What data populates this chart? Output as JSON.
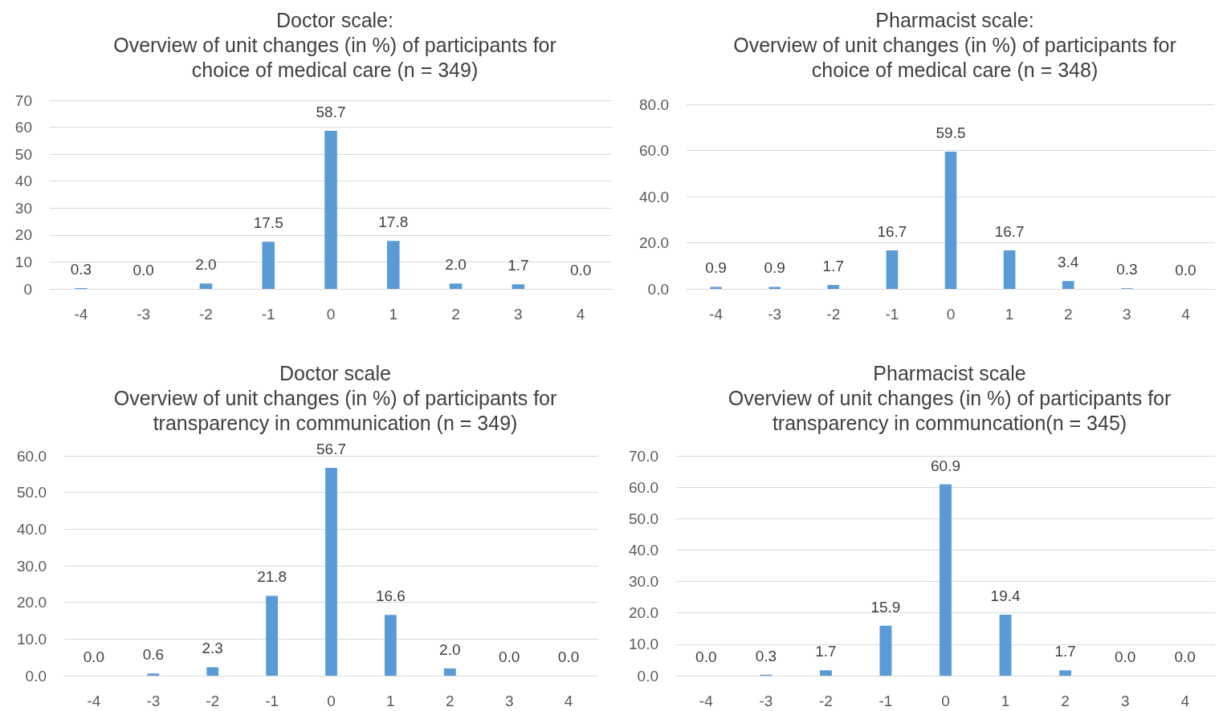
{
  "chart_data": [
    {
      "type": "bar",
      "title": "Doctor scale:\nOverview of unit changes (in %) of participants for\nchoice of medical care (n = 349)",
      "categories": [
        "-4",
        "-3",
        "-2",
        "-1",
        "0",
        "1",
        "2",
        "3",
        "4"
      ],
      "color": "#5b9bd5",
      "values": [
        0.3,
        0.0,
        2.0,
        17.5,
        58.7,
        17.8,
        2.0,
        1.7,
        0.0
      ],
      "value_labels": [
        "0.3",
        "0.0",
        "2.0",
        "17.5",
        "58.7",
        "17.8",
        "2.0",
        "1.7",
        "0.0"
      ],
      "ylim": [
        0,
        70
      ],
      "yticks": [
        0,
        10,
        20,
        30,
        40,
        50,
        60,
        70
      ],
      "grid": "y"
    },
    {
      "type": "bar",
      "title": "Pharmacist scale:\nOverview of unit changes (in %) of participants for\nchoice of medical care (n = 348)",
      "categories": [
        "-4",
        "-3",
        "-2",
        "-1",
        "0",
        "1",
        "2",
        "3",
        "4"
      ],
      "color": "#5b9bd5",
      "values": [
        0.9,
        0.9,
        1.7,
        16.7,
        59.5,
        16.7,
        3.4,
        0.3,
        0.0
      ],
      "value_labels": [
        "0.9",
        "0.9",
        "1.7",
        "16.7",
        "59.5",
        "16.7",
        "3.4",
        "0.3",
        "0.0"
      ],
      "ylim": [
        0,
        80
      ],
      "yticks": [
        {
          "value": 0,
          "label": "0.0"
        },
        {
          "value": 20,
          "label": "20.0"
        },
        {
          "value": 40,
          "label": "40.0"
        },
        {
          "value": 60,
          "label": "60.0"
        },
        {
          "value": 80,
          "label": "80.0"
        }
      ],
      "grid": "y"
    },
    {
      "type": "bar",
      "title": "Doctor scale\nOverview of unit changes (in %) of participants for\ntransparency in communication (n = 349)",
      "categories": [
        "-4",
        "-3",
        "-2",
        "-1",
        "0",
        "1",
        "2",
        "3",
        "4"
      ],
      "color": "#5b9bd5",
      "values": [
        0.0,
        0.6,
        2.3,
        21.8,
        56.7,
        16.6,
        2.0,
        0.0,
        0.0
      ],
      "value_labels": [
        "0.0",
        "0.6",
        "2.3",
        "21.8",
        "56.7",
        "16.6",
        "2.0",
        "0.0",
        "0.0"
      ],
      "ylim": [
        0,
        60
      ],
      "yticks": [
        {
          "value": 0,
          "label": "0.0"
        },
        {
          "value": 10,
          "label": "10.0"
        },
        {
          "value": 20,
          "label": "20.0"
        },
        {
          "value": 30,
          "label": "30.0"
        },
        {
          "value": 40,
          "label": "40.0"
        },
        {
          "value": 50,
          "label": "50.0"
        },
        {
          "value": 60,
          "label": "60.0"
        }
      ],
      "grid": "y"
    },
    {
      "type": "bar",
      "title": "Pharmacist scale\nOverview of unit changes (in %) of participants for\ntransparency in communcation(n = 345)",
      "categories": [
        "-4",
        "-3",
        "-2",
        "-1",
        "0",
        "1",
        "2",
        "3",
        "4"
      ],
      "color": "#5b9bd5",
      "values": [
        0.0,
        0.3,
        1.7,
        15.9,
        60.9,
        19.4,
        1.7,
        0.0,
        0.0
      ],
      "value_labels": [
        "0.0",
        "0.3",
        "1.7",
        "15.9",
        "60.9",
        "19.4",
        "1.7",
        "0.0",
        "0.0"
      ],
      "ylim": [
        0,
        70
      ],
      "yticks": [
        {
          "value": 0,
          "label": "0.0"
        },
        {
          "value": 10,
          "label": "10.0"
        },
        {
          "value": 20,
          "label": "20.0"
        },
        {
          "value": 30,
          "label": "30.0"
        },
        {
          "value": 40,
          "label": "40.0"
        },
        {
          "value": 50,
          "label": "50.0"
        },
        {
          "value": 60,
          "label": "60.0"
        },
        {
          "value": 70,
          "label": "70.0"
        }
      ],
      "grid": "y"
    }
  ]
}
